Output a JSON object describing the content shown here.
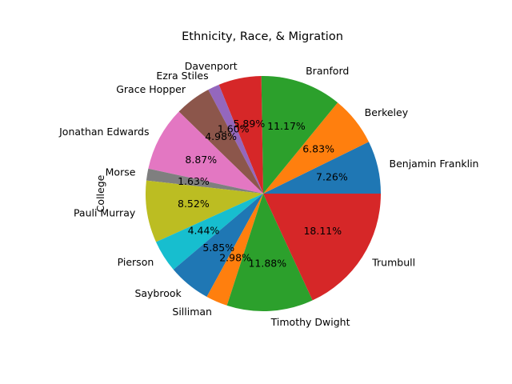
{
  "chart_data": {
    "type": "pie",
    "title": "Ethnicity, Race, & Migration",
    "ylabel": "College",
    "categories": [
      "Benjamin Franklin",
      "Berkeley",
      "Branford",
      "Davenport",
      "Ezra Stiles",
      "Grace Hopper",
      "Jonathan Edwards",
      "Morse",
      "Pauli Murray",
      "Pierson",
      "Saybrook",
      "Silliman",
      "Timothy Dwight",
      "Trumbull"
    ],
    "values": [
      7.26,
      6.83,
      11.17,
      5.89,
      1.6,
      4.98,
      8.87,
      1.63,
      8.52,
      4.44,
      5.85,
      2.98,
      11.88,
      18.11
    ],
    "value_labels": [
      "7.26%",
      "6.83%",
      "11.17%",
      "5.89%",
      "1.60%",
      "4.98%",
      "8.87%",
      "1.63%",
      "8.52%",
      "4.44%",
      "5.85%",
      "2.98%",
      "11.88%",
      "18.11%"
    ],
    "colors": [
      "#1f77b4",
      "#ff7f0e",
      "#2ca02c",
      "#d62728",
      "#9467bd",
      "#8c564b",
      "#e377c2",
      "#7f7f7f",
      "#bcbd22",
      "#17becf",
      "#1f77b4",
      "#ff7f0e",
      "#2ca02c",
      "#d62728"
    ],
    "start_angle_deg": 0,
    "direction": "counterclockwise",
    "legend": "none"
  }
}
